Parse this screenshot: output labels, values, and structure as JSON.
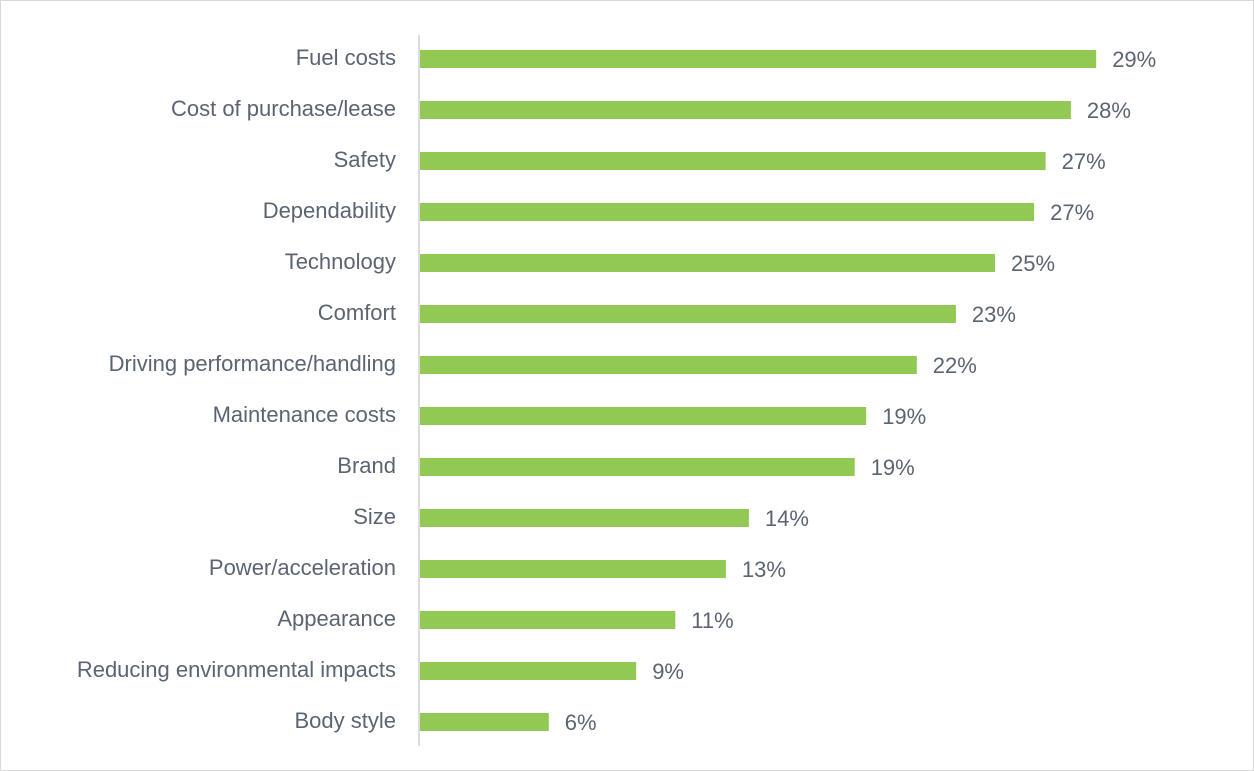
{
  "chart_data": {
    "type": "barh",
    "categories": [
      "Fuel costs",
      "Cost of purchase/lease",
      "Safety",
      "Dependability",
      "Technology",
      "Comfort",
      "Driving performance/handling",
      "Maintenance costs",
      "Brand",
      "Size",
      "Power/acceleration",
      "Appearance",
      "Reducing environmental impacts",
      "Body style"
    ],
    "values": [
      29.4,
      28.3,
      27.2,
      26.7,
      25.0,
      23.3,
      21.6,
      19.4,
      18.9,
      14.3,
      13.3,
      11.1,
      9.4,
      5.6
    ],
    "value_labels": [
      "29%",
      "28%",
      "27%",
      "27%",
      "25%",
      "23%",
      "22%",
      "19%",
      "19%",
      "14%",
      "13%",
      "11%",
      "9%",
      "6%"
    ],
    "color": "#92c955",
    "xlim": [
      0,
      30
    ]
  }
}
